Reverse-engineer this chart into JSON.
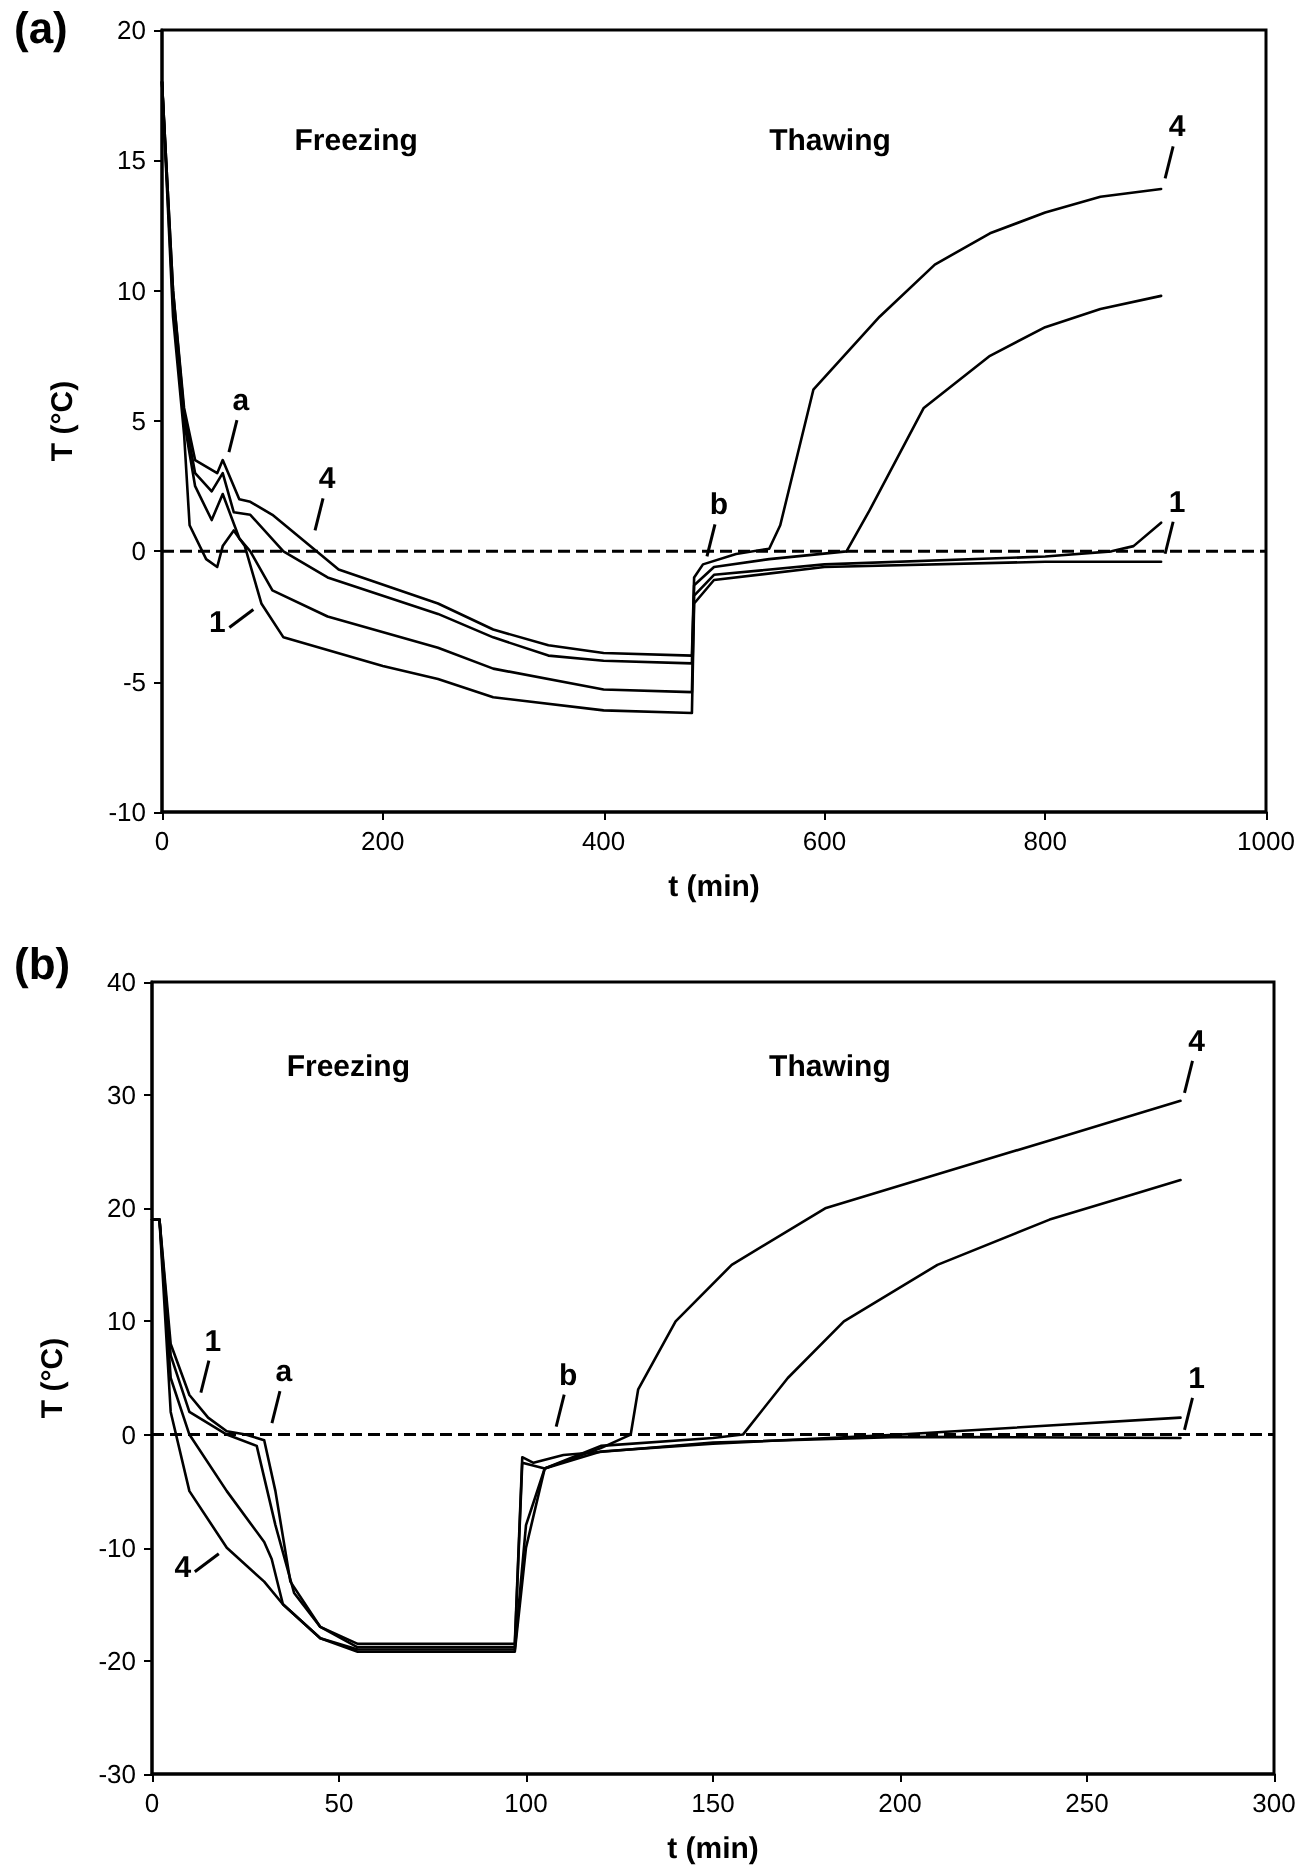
{
  "chart_data": [
    {
      "type": "line",
      "title": "(a)",
      "xlabel": "t (min)",
      "ylabel": "T (°C)",
      "xlim": [
        0,
        1000
      ],
      "ylim": [
        -10,
        20
      ],
      "xticks": [
        0,
        200,
        400,
        600,
        800,
        1000
      ],
      "yticks": [
        -10,
        -5,
        0,
        5,
        10,
        15,
        20
      ],
      "grid": false,
      "marker": "none",
      "line_style": "solid",
      "ref_lines": [
        {
          "axis": "y",
          "value": 0,
          "line_style": "dashed",
          "color": "#000000"
        }
      ],
      "annotations": [
        "Freezing",
        "Thawing",
        {
          "text": "a",
          "x": 57,
          "y": 3.5
        },
        {
          "text": "4",
          "x": 135,
          "y": 0.5
        },
        {
          "text": "1",
          "x": 90,
          "y": -2
        },
        {
          "text": "b",
          "x": 490,
          "y": -0.5
        },
        {
          "text": "4",
          "x": 905,
          "y": 14
        },
        {
          "text": "1",
          "x": 905,
          "y": -0.4
        }
      ],
      "series": [
        {
          "color": "#000000",
          "x": [
            0,
            10,
            20,
            30,
            50,
            55,
            70,
            80,
            100,
            140,
            160,
            250,
            300,
            350,
            400,
            480,
            482,
            490,
            520,
            550,
            560,
            590,
            650,
            700,
            750,
            800,
            850,
            905
          ],
          "values": [
            18,
            10,
            5.5,
            3.5,
            3.0,
            3.5,
            2.0,
            1.9,
            1.4,
            0,
            -0.7,
            -2,
            -3,
            -3.6,
            -3.9,
            -4.0,
            -1.0,
            -0.5,
            -0.1,
            0.1,
            1.0,
            6.2,
            9,
            11,
            12.2,
            13.0,
            13.6,
            13.9
          ]
        },
        {
          "color": "#000000",
          "x": [
            0,
            10,
            20,
            30,
            45,
            55,
            65,
            80,
            110,
            150,
            250,
            300,
            350,
            400,
            480,
            482,
            500,
            550,
            620,
            640,
            690,
            750,
            800,
            850,
            905
          ],
          "values": [
            18,
            10,
            5.3,
            3,
            2.3,
            3.0,
            1.5,
            1.4,
            0,
            -1.0,
            -2.4,
            -3.3,
            -4.0,
            -4.2,
            -4.3,
            -1.3,
            -0.6,
            -0.3,
            0,
            1.5,
            5.5,
            7.5,
            8.6,
            9.3,
            9.8
          ]
        },
        {
          "color": "#000000",
          "x": [
            0,
            10,
            20,
            30,
            45,
            55,
            70,
            80,
            100,
            150,
            250,
            300,
            400,
            480,
            482,
            500,
            600,
            800,
            860,
            880,
            905
          ],
          "values": [
            18,
            9.5,
            5,
            2.5,
            1.2,
            2.2,
            0.5,
            0,
            -1.5,
            -2.5,
            -3.7,
            -4.5,
            -5.3,
            -5.4,
            -1.7,
            -0.9,
            -0.5,
            -0.2,
            0,
            0.2,
            1.1
          ]
        },
        {
          "color": "#000000",
          "x": [
            0,
            10,
            20,
            25,
            40,
            50,
            55,
            65,
            75,
            90,
            110,
            200,
            250,
            300,
            400,
            480,
            482,
            500,
            600,
            800,
            905
          ],
          "values": [
            18,
            9,
            4.5,
            1,
            -0.3,
            -0.6,
            0.2,
            0.8,
            0.2,
            -2,
            -3.3,
            -4.4,
            -4.9,
            -5.6,
            -6.1,
            -6.2,
            -2,
            -1.1,
            -0.6,
            -0.4,
            -0.4
          ]
        }
      ]
    },
    {
      "type": "line",
      "title": "(b)",
      "xlabel": "t (min)",
      "ylabel": "T (°C)",
      "xlim": [
        0,
        300
      ],
      "ylim": [
        -30,
        40
      ],
      "xticks": [
        0,
        50,
        100,
        150,
        200,
        250,
        300
      ],
      "yticks": [
        -30,
        -20,
        -10,
        0,
        10,
        20,
        30,
        40
      ],
      "grid": false,
      "marker": "none",
      "line_style": "solid",
      "ref_lines": [
        {
          "axis": "y",
          "value": 0,
          "line_style": "dashed",
          "color": "#000000"
        }
      ],
      "annotations": [
        "Freezing",
        "Thawing",
        {
          "text": "1",
          "x": 12,
          "y": 3
        },
        {
          "text": "a",
          "x": 31,
          "y": 0.3
        },
        {
          "text": "b",
          "x": 107,
          "y": 0
        },
        {
          "text": "4",
          "x": 20,
          "y": -10
        },
        {
          "text": "4",
          "x": 275,
          "y": 29.5
        },
        {
          "text": "1",
          "x": 275,
          "y": -0.3
        }
      ],
      "series": [
        {
          "color": "#000000",
          "x": [
            0,
            2,
            5,
            10,
            15,
            20,
            25,
            30,
            33,
            37,
            45,
            55,
            97,
            99,
            102,
            110,
            150,
            200,
            275
          ],
          "values": [
            19,
            19,
            8,
            3.5,
            1.5,
            0.3,
            0,
            -0.5,
            -5,
            -13,
            -17,
            -18.5,
            -18.5,
            -2,
            -2.5,
            -1.8,
            -0.7,
            -0.2,
            -0.3
          ]
        },
        {
          "color": "#000000",
          "x": [
            0,
            2,
            5,
            10,
            20,
            28,
            33,
            38,
            45,
            55,
            97,
            99,
            105,
            120,
            150,
            200,
            275
          ],
          "values": [
            19,
            19,
            7,
            2,
            0,
            -1,
            -8,
            -14,
            -17,
            -18.8,
            -18.8,
            -2.5,
            -3,
            -1.5,
            -0.8,
            0,
            1.5
          ]
        },
        {
          "color": "#000000",
          "x": [
            0,
            2,
            5,
            10,
            20,
            30,
            32,
            35,
            45,
            55,
            97,
            100,
            105,
            120,
            150,
            158,
            170,
            185,
            210,
            240,
            260,
            275
          ],
          "values": [
            19,
            19,
            5,
            0,
            -5,
            -9.5,
            -11,
            -15,
            -18,
            -19,
            -19,
            -8,
            -3,
            -1,
            -0.3,
            0,
            5,
            10,
            15,
            19,
            21,
            22.5
          ]
        },
        {
          "color": "#000000",
          "x": [
            0,
            2,
            5,
            10,
            20,
            30,
            35,
            45,
            55,
            97,
            100,
            105,
            120,
            128,
            130,
            140,
            155,
            180,
            210,
            240,
            260,
            275
          ],
          "values": [
            19,
            19,
            2,
            -5,
            -10,
            -13,
            -15,
            -18,
            -19.2,
            -19.2,
            -10,
            -3,
            -1.2,
            0,
            4,
            10,
            15,
            20,
            23,
            26,
            28,
            29.5
          ]
        }
      ]
    }
  ]
}
